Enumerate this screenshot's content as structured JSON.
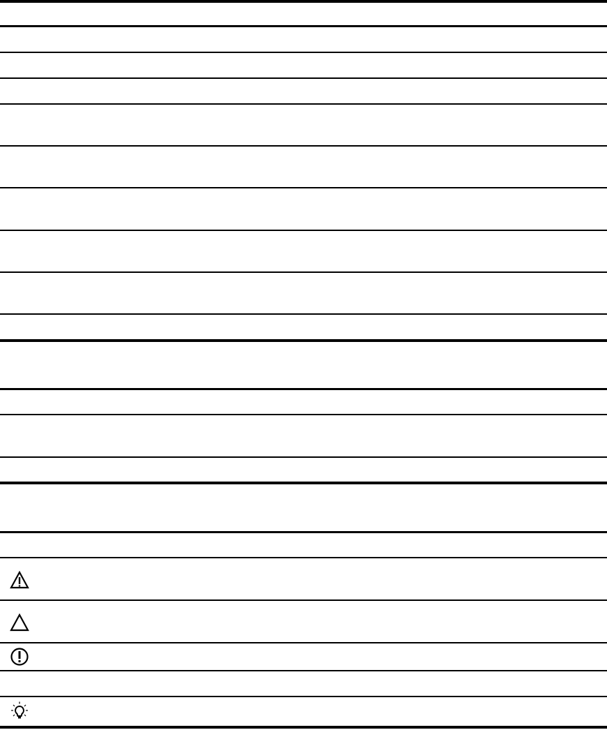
{
  "document": {
    "rule_color": "#000000",
    "icons": [
      "warning-icon",
      "caution-icon",
      "important-icon",
      "tip-icon"
    ]
  }
}
